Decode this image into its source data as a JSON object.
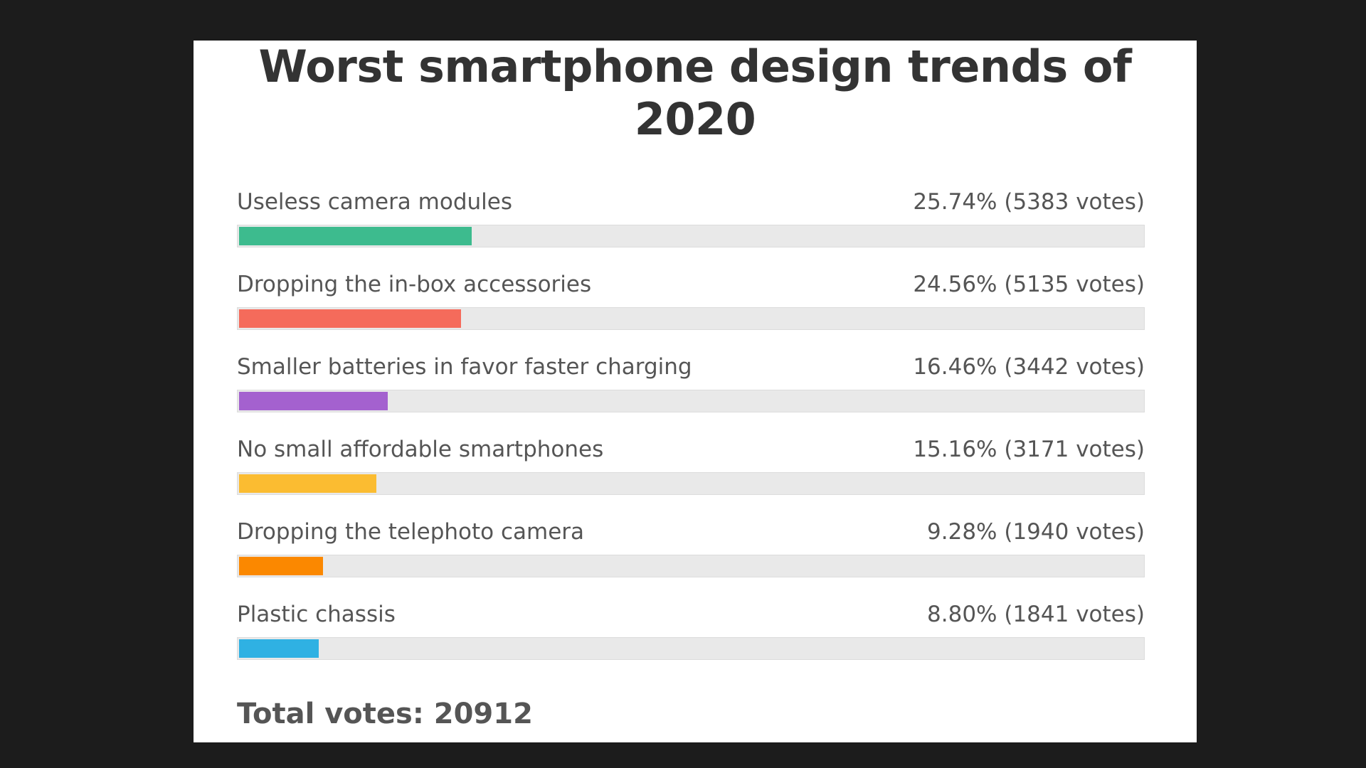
{
  "chart_data": {
    "type": "bar",
    "title_lines": [
      "Worst smartphone design trends of",
      "2020"
    ],
    "categories": [
      "Useless camera modules",
      "Dropping the in-box accessories",
      "Smaller batteries in favor faster charging",
      "No small affordable smartphones",
      "Dropping the telephoto camera",
      "Plastic chassis"
    ],
    "percent": [
      25.74,
      24.56,
      16.46,
      15.16,
      9.28,
      8.8
    ],
    "votes": [
      5383,
      5135,
      3442,
      3171,
      1940,
      1841
    ],
    "value_labels": [
      "25.74% (5383 votes)",
      "24.56% (5135 votes)",
      "16.46% (3442 votes)",
      "15.16% (3171 votes)",
      "9.28% (1940 votes)",
      "8.80% (1841 votes)"
    ],
    "colors": [
      "#3dbb8e",
      "#f56b5b",
      "#a461cf",
      "#fbbc31",
      "#fb8800",
      "#2fb1e3"
    ],
    "total_label": "Total votes: 20912",
    "total_votes": 20912
  }
}
